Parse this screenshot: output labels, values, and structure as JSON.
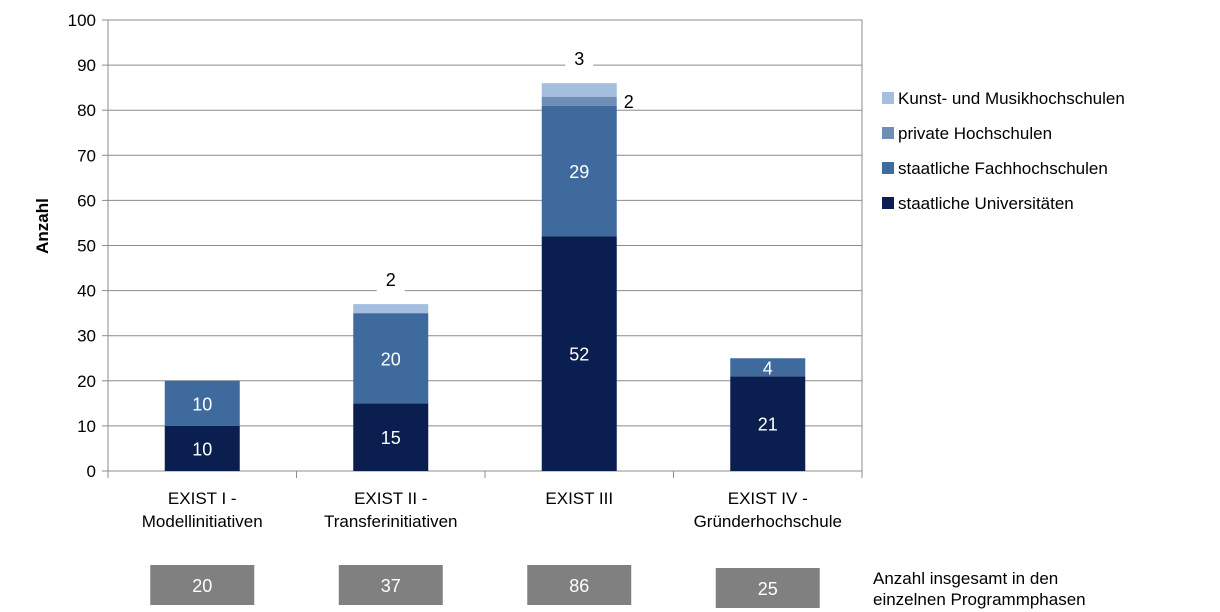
{
  "chart_data": {
    "type": "bar",
    "stacked": true,
    "ylabel": "Anzahl",
    "ylim": [
      0,
      100
    ],
    "yticks": [
      "0",
      "10",
      "20",
      "30",
      "40",
      "50",
      "60",
      "70",
      "80",
      "90",
      "100"
    ],
    "categories": [
      [
        "EXIST I -",
        "Modellinitiativen"
      ],
      [
        "EXIST II -",
        "Transferinitiativen"
      ],
      [
        "EXIST III"
      ],
      [
        "EXIST IV -",
        "Gründerhochschule"
      ]
    ],
    "series": [
      {
        "name": "staatliche Universitäten",
        "color": "#0a1f4f",
        "values": [
          10,
          15,
          52,
          21
        ],
        "labels": [
          "10",
          "15",
          "52",
          "21"
        ]
      },
      {
        "name": "staatliche Fachhochschulen",
        "color": "#3f6a9e",
        "values": [
          10,
          20,
          29,
          4
        ],
        "labels": [
          "10",
          "20",
          "29",
          "4"
        ]
      },
      {
        "name": "private Hochschulen",
        "color": "#6f8db5",
        "values": [
          0,
          0,
          2,
          0
        ],
        "labels": [
          "",
          "",
          "2",
          ""
        ]
      },
      {
        "name": "Kunst- und Musikhochschulen",
        "color": "#a3bede",
        "values": [
          0,
          2,
          3,
          0
        ],
        "labels": [
          "",
          "2",
          "3",
          ""
        ]
      }
    ],
    "totals": [
      "20",
      "37",
      "86",
      "25"
    ],
    "totals_note": [
      "Anzahl insgesamt in den",
      "einzelnen  Programmphasen"
    ],
    "legend_position": "right",
    "grid": true
  }
}
